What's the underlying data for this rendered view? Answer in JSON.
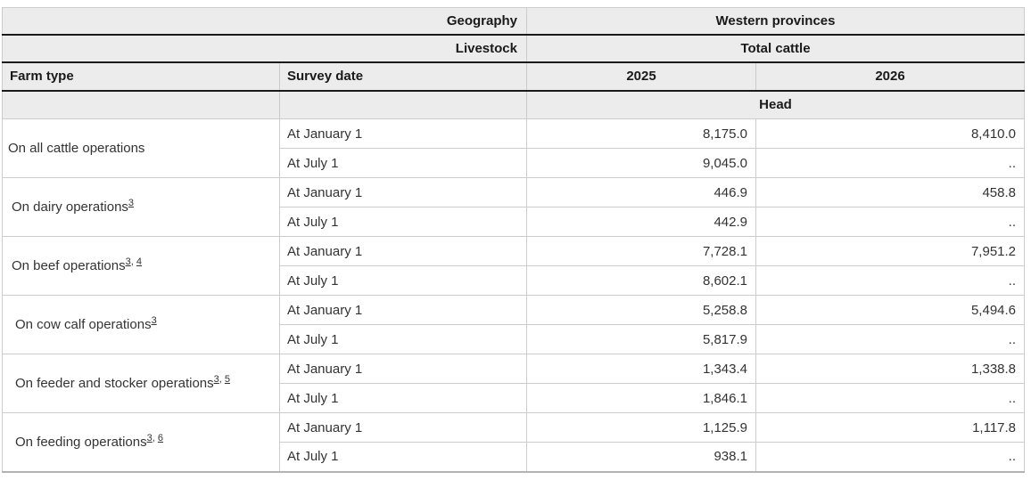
{
  "header": {
    "geography_label": "Geography",
    "geography_value": "Western provinces",
    "livestock_label": "Livestock",
    "livestock_value": "Total cattle",
    "farm_type_label": "Farm type",
    "survey_date_label": "Survey date",
    "year_2025": "2025",
    "year_2026": "2026",
    "unit_label": "Head"
  },
  "chart_data": {
    "type": "table",
    "geography": "Western provinces",
    "livestock": "Total cattle",
    "unit": "Head",
    "years": [
      "2025",
      "2026"
    ],
    "column_headers": [
      "Farm type",
      "Survey date",
      "2025",
      "2026"
    ],
    "missing_value_symbol": "..",
    "groups": [
      {
        "farm_type": "On all cattle operations",
        "footnotes": [],
        "indent_level": 0,
        "rows": [
          {
            "survey_date": "At January 1",
            "values": [
              "8,175.0",
              "8,410.0"
            ]
          },
          {
            "survey_date": "At July 1",
            "values": [
              "9,045.0",
              ".."
            ]
          }
        ]
      },
      {
        "farm_type": "On dairy operations",
        "footnotes": [
          "3"
        ],
        "indent_level": 1,
        "rows": [
          {
            "survey_date": "At January 1",
            "values": [
              "446.9",
              "458.8"
            ]
          },
          {
            "survey_date": "At July 1",
            "values": [
              "442.9",
              ".."
            ]
          }
        ]
      },
      {
        "farm_type": "On beef operations",
        "footnotes": [
          "3",
          "4"
        ],
        "indent_level": 1,
        "rows": [
          {
            "survey_date": "At January 1",
            "values": [
              "7,728.1",
              "7,951.2"
            ]
          },
          {
            "survey_date": "At July 1",
            "values": [
              "8,602.1",
              ".."
            ]
          }
        ]
      },
      {
        "farm_type": "On cow calf operations",
        "footnotes": [
          "3"
        ],
        "indent_level": 2,
        "rows": [
          {
            "survey_date": "At January 1",
            "values": [
              "5,258.8",
              "5,494.6"
            ]
          },
          {
            "survey_date": "At July 1",
            "values": [
              "5,817.9",
              ".."
            ]
          }
        ]
      },
      {
        "farm_type": "On feeder and stocker operations",
        "footnotes": [
          "3",
          "5"
        ],
        "indent_level": 2,
        "rows": [
          {
            "survey_date": "At January 1",
            "values": [
              "1,343.4",
              "1,338.8"
            ]
          },
          {
            "survey_date": "At July 1",
            "values": [
              "1,846.1",
              ".."
            ]
          }
        ]
      },
      {
        "farm_type": "On feeding operations",
        "footnotes": [
          "3",
          "6"
        ],
        "indent_level": 2,
        "rows": [
          {
            "survey_date": "At January 1",
            "values": [
              "1,125.9",
              "1,117.8"
            ]
          },
          {
            "survey_date": "At July 1",
            "values": [
              "938.1",
              ".."
            ]
          }
        ]
      }
    ]
  }
}
